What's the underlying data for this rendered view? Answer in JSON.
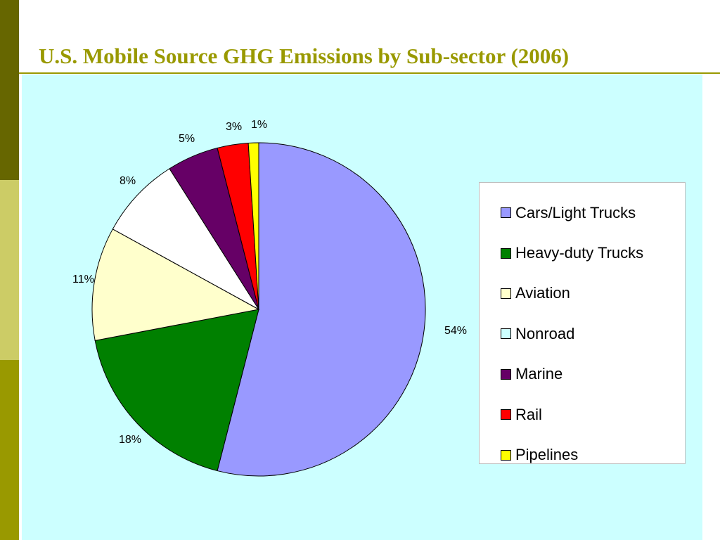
{
  "theme": {
    "side_colors": [
      "#666600",
      "#CCCC66",
      "#999900"
    ],
    "title_color": "#999900",
    "rule_color": "#999900",
    "chart_bg": "#CCFFFF"
  },
  "slide": {
    "title": "U.S. Mobile Source GHG Emissions by Sub-sector (2006)"
  },
  "chart_data": {
    "type": "pie",
    "title": "",
    "legend_position": "right",
    "start_angle": "12 o'clock, clockwise",
    "slices": [
      {
        "label": "Cars/Light Trucks",
        "value": 54,
        "display": "54%",
        "color": "#9999FF"
      },
      {
        "label": "Heavy-duty Trucks",
        "value": 18,
        "display": "18%",
        "color": "#008000"
      },
      {
        "label": "Aviation",
        "value": 11,
        "display": "11%",
        "color": "#FFFFCC"
      },
      {
        "label": "Nonroad",
        "value": 8,
        "display": "8%",
        "color": "#FFFFFF"
      },
      {
        "label": "Marine",
        "value": 5,
        "display": "5%",
        "color": "#660066"
      },
      {
        "label": "Rail",
        "value": 3,
        "display": "3%",
        "color": "#FF0000"
      },
      {
        "label": "Pipelines",
        "value": 1,
        "display": "1%",
        "color": "#FFFF00"
      }
    ]
  },
  "legend": {
    "items": [
      {
        "label": "Cars/Light Trucks",
        "swatch": "#9999FF"
      },
      {
        "label": "Heavy-duty Trucks",
        "swatch": "#008000"
      },
      {
        "label": "Aviation",
        "swatch": "#FFFFCC"
      },
      {
        "label": "Nonroad",
        "swatch": "#CCFFFF"
      },
      {
        "label": "Marine",
        "swatch": "#660066"
      },
      {
        "label": "Rail",
        "swatch": "#FF0000"
      },
      {
        "label": "Pipelines",
        "swatch": "#FFFF00"
      }
    ]
  }
}
